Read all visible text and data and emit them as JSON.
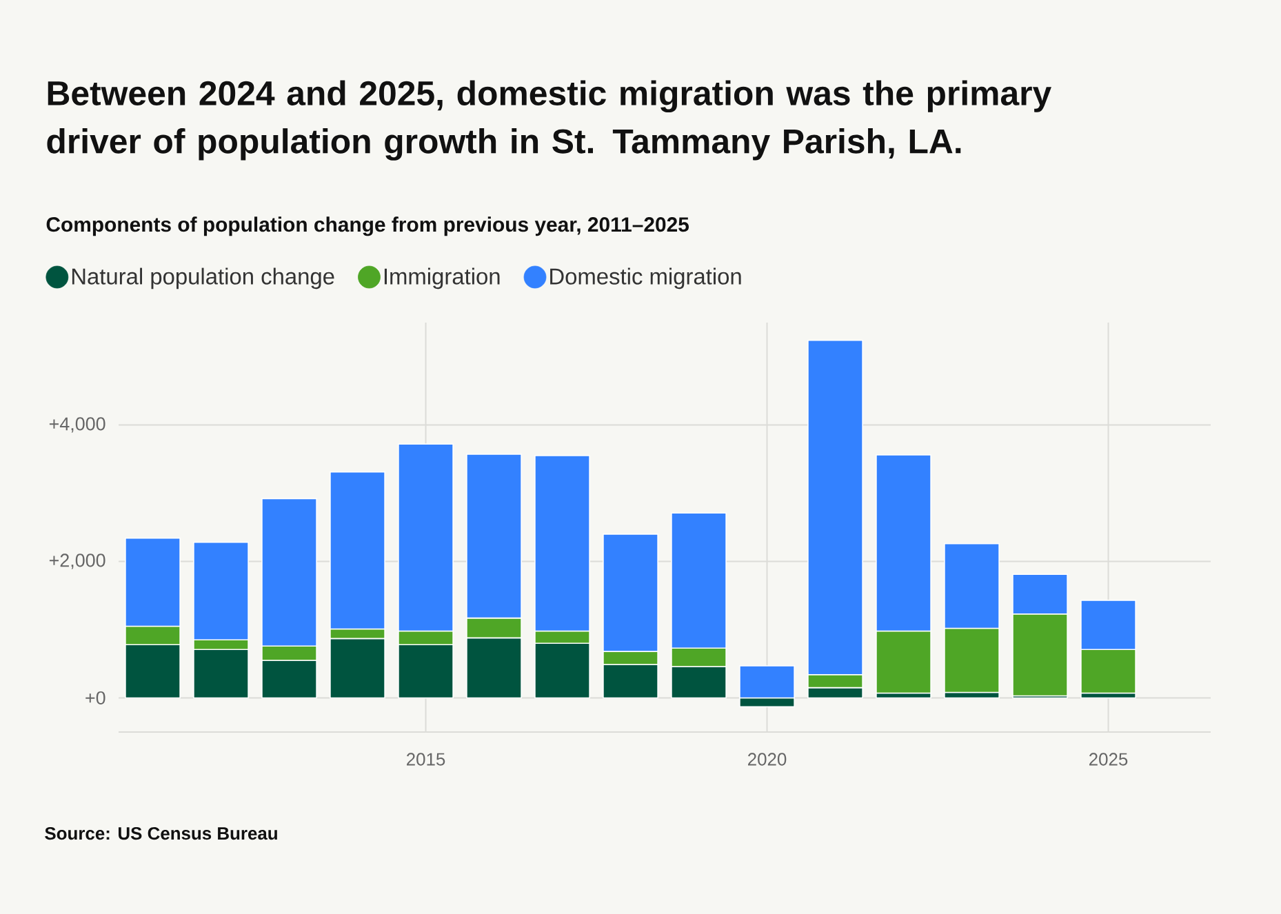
{
  "chart_data": {
    "type": "bar",
    "stacked": true,
    "title": "Between 2024 and 2025, domestic migration was the primary driver of population growth in St. Tammany Parish, LA.",
    "subtitle": "Components of population change from previous year, 2011–2025",
    "annotations": [
      "Source: US Census Bureau"
    ],
    "x": [
      2011,
      2012,
      2013,
      2014,
      2015,
      2016,
      2017,
      2018,
      2019,
      2020,
      2021,
      2022,
      2023,
      2024,
      2025
    ],
    "xlim": [
      2010.5,
      2026.5
    ],
    "xticks": [
      2015,
      2020,
      2025
    ],
    "ylim": [
      -500,
      5500
    ],
    "yticks": [
      {
        "value": 0,
        "label": "+0"
      },
      {
        "value": 2000,
        "label": "+2,000"
      },
      {
        "value": 4000,
        "label": "+4,000"
      }
    ],
    "grid": true,
    "legend": "top left",
    "series": [
      {
        "name": "Natural population change",
        "color": "#00543f",
        "values": [
          780,
          710,
          550,
          870,
          780,
          880,
          800,
          490,
          460,
          -130,
          150,
          70,
          80,
          30,
          70
        ]
      },
      {
        "name": "Immigration",
        "color": "#4fa626",
        "values": [
          270,
          140,
          210,
          140,
          200,
          290,
          180,
          190,
          270,
          0,
          190,
          910,
          940,
          1200,
          640
        ]
      },
      {
        "name": "Domestic migration",
        "color": "#3381ff",
        "values": [
          1290,
          1430,
          2160,
          2300,
          2740,
          2400,
          2570,
          1720,
          1980,
          470,
          4900,
          2580,
          1240,
          580,
          720
        ]
      }
    ]
  }
}
